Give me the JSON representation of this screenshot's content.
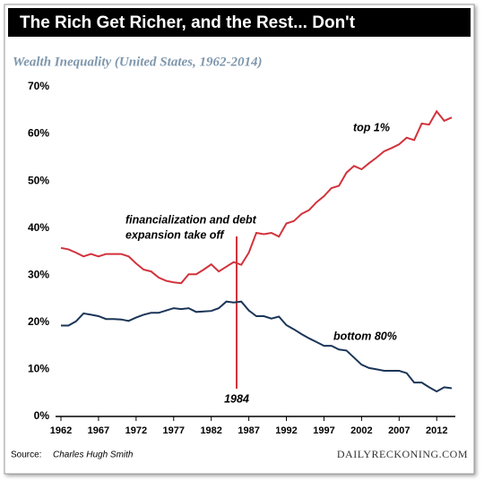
{
  "chart_data": {
    "type": "line",
    "title": "The Rich Get Richer, and the Rest... Don't",
    "subtitle": "Wealth Inequality (United States, 1962-2014)",
    "source_label": "Source:",
    "source": "Charles Hugh Smith",
    "credit": "DAILYRECKONING.COM",
    "annotations": [
      "financialization and debt",
      "expansion take off",
      "1984"
    ],
    "x": [
      1962,
      1963,
      1964,
      1965,
      1966,
      1967,
      1968,
      1969,
      1970,
      1971,
      1972,
      1973,
      1974,
      1975,
      1976,
      1977,
      1978,
      1979,
      1980,
      1981,
      1982,
      1983,
      1984,
      1985,
      1986,
      1987,
      1988,
      1989,
      1990,
      1991,
      1992,
      1993,
      1994,
      1995,
      1996,
      1997,
      1998,
      1999,
      2000,
      2001,
      2002,
      2003,
      2004,
      2005,
      2006,
      2007,
      2008,
      2009,
      2010,
      2011,
      2012,
      2013,
      2014
    ],
    "series": [
      {
        "name": "top 1%",
        "color": "#d2323c",
        "values": [
          35.8,
          35.5,
          34.8,
          34.0,
          34.5,
          34.0,
          34.5,
          34.5,
          34.5,
          34.0,
          32.5,
          31.2,
          30.8,
          29.5,
          28.8,
          28.5,
          28.3,
          30.2,
          30.2,
          31.2,
          32.3,
          30.8,
          31.8,
          32.8,
          32.2,
          34.8,
          39.0,
          38.7,
          39.0,
          38.2,
          41.0,
          41.5,
          43.0,
          43.8,
          45.5,
          46.8,
          48.5,
          49.0,
          51.8,
          53.2,
          52.5,
          53.8,
          55.0,
          56.3,
          57.0,
          57.8,
          59.2,
          58.7,
          62.2,
          62.0,
          64.8,
          62.8,
          63.5
        ]
      },
      {
        "name": "bottom 80%",
        "color": "#1a3557",
        "values": [
          19.3,
          19.3,
          20.2,
          21.9,
          21.6,
          21.3,
          20.7,
          20.7,
          20.6,
          20.3,
          21.0,
          21.6,
          22.0,
          22.0,
          22.5,
          23.0,
          22.8,
          23.0,
          22.2,
          22.3,
          22.4,
          23.0,
          24.4,
          24.2,
          24.4,
          22.5,
          21.3,
          21.3,
          20.8,
          21.2,
          19.4,
          18.5,
          17.5,
          16.6,
          15.8,
          15.0,
          15.0,
          14.2,
          14.0,
          12.5,
          11.0,
          10.3,
          10.0,
          9.7,
          9.7,
          9.7,
          9.2,
          7.2,
          7.2,
          6.2,
          5.3,
          6.2,
          6.0
        ]
      }
    ],
    "xlim": [
      1962,
      2014
    ],
    "xticks": [
      1962,
      1967,
      1972,
      1977,
      1982,
      1987,
      1992,
      1997,
      2002,
      2007,
      2012
    ],
    "ylim": [
      0,
      70
    ],
    "yticks": [
      {
        "value": 0,
        "label": "0%"
      },
      {
        "value": 10,
        "label": "10%"
      },
      {
        "value": 20,
        "label": "20%"
      },
      {
        "value": 30,
        "label": "30%"
      },
      {
        "value": 40,
        "label": "40%"
      },
      {
        "value": 50,
        "label": "50%"
      },
      {
        "value": 60,
        "label": "60%"
      },
      {
        "value": 70,
        "label": "70%"
      }
    ]
  }
}
